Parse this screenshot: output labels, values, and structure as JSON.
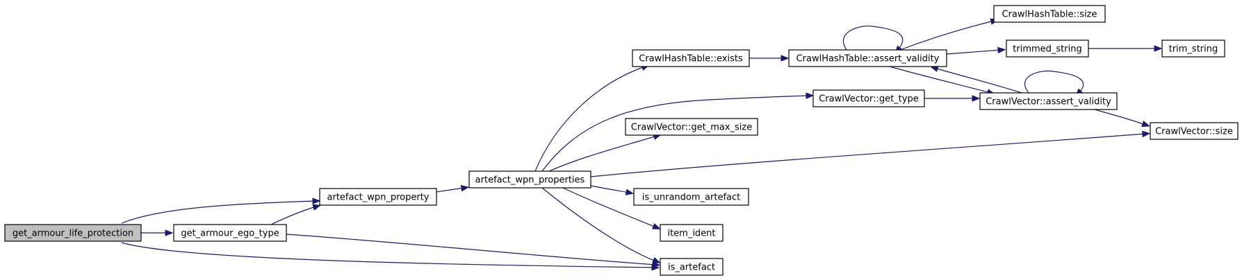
{
  "nodes": [
    {
      "id": "root",
      "label": "get_armour_life_protection",
      "root": true
    },
    {
      "id": "awp1",
      "label": "artefact_wpn_property"
    },
    {
      "id": "gaet",
      "label": "get_armour_ego_type"
    },
    {
      "id": "awps",
      "label": "artefact_wpn_properties"
    },
    {
      "id": "iart",
      "label": "is_artefact"
    },
    {
      "id": "chex",
      "label": "CrawlHashTable::exists"
    },
    {
      "id": "cvgt",
      "label": "CrawlVector::get_type"
    },
    {
      "id": "cvgm",
      "label": "CrawlVector::get_max_size"
    },
    {
      "id": "cvsz",
      "label": "CrawlVector::size"
    },
    {
      "id": "iuna",
      "label": "is_unrandom_artefact"
    },
    {
      "id": "iid",
      "label": "item_ident"
    },
    {
      "id": "chav",
      "label": "CrawlHashTable::assert_validity"
    },
    {
      "id": "chsz",
      "label": "CrawlHashTable::size"
    },
    {
      "id": "tstr",
      "label": "trimmed_string"
    },
    {
      "id": "trim",
      "label": "trim_string"
    },
    {
      "id": "cvav",
      "label": "CrawlVector::assert_validity"
    }
  ],
  "edges": [
    {
      "from": "root",
      "to": "awp1"
    },
    {
      "from": "root",
      "to": "gaet"
    },
    {
      "from": "root",
      "to": "iart"
    },
    {
      "from": "gaet",
      "to": "awp1"
    },
    {
      "from": "gaet",
      "to": "iart"
    },
    {
      "from": "awp1",
      "to": "awps"
    },
    {
      "from": "awps",
      "to": "chex"
    },
    {
      "from": "awps",
      "to": "cvgt"
    },
    {
      "from": "awps",
      "to": "cvgm"
    },
    {
      "from": "awps",
      "to": "cvsz"
    },
    {
      "from": "awps",
      "to": "iuna"
    },
    {
      "from": "awps",
      "to": "iid"
    },
    {
      "from": "awps",
      "to": "iart"
    },
    {
      "from": "chex",
      "to": "chav"
    },
    {
      "from": "chav",
      "to": "chav"
    },
    {
      "from": "chav",
      "to": "chsz"
    },
    {
      "from": "chav",
      "to": "tstr"
    },
    {
      "from": "chav",
      "to": "cvav"
    },
    {
      "from": "tstr",
      "to": "trim"
    },
    {
      "from": "cvgt",
      "to": "cvav"
    },
    {
      "from": "cvav",
      "to": "cvav"
    },
    {
      "from": "cvav",
      "to": "chav"
    },
    {
      "from": "cvav",
      "to": "cvsz"
    }
  ]
}
